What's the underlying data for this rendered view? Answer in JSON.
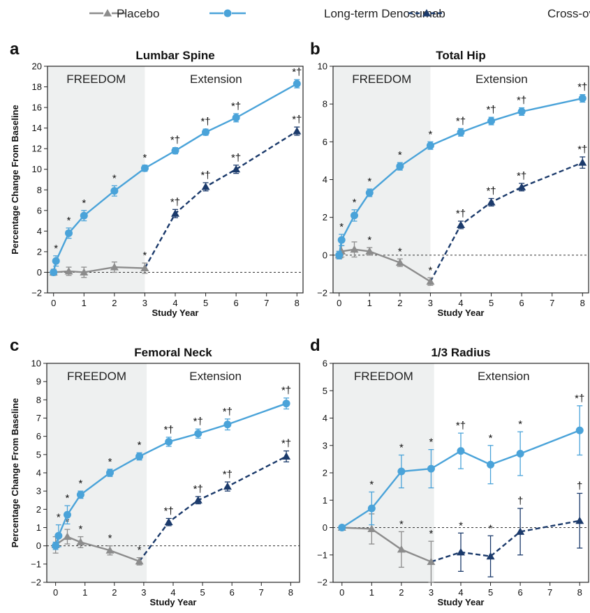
{
  "legend": [
    {
      "label": "Placebo",
      "marker": "triangle",
      "color": "#8c8c8c",
      "dash": "solid"
    },
    {
      "label": "Long-term Denosumab",
      "marker": "circle",
      "color": "#4aa3d9",
      "dash": "solid"
    },
    {
      "label": "Cross-over Denosumab",
      "marker": "triangle",
      "color": "#1b3a6b",
      "dash": "dashed"
    }
  ],
  "regions": {
    "freedom": "FREEDOM",
    "extension": "Extension"
  },
  "colors": {
    "placebo": "#8c8c8c",
    "long_term": "#4aa3d9",
    "cross_over": "#1b3a6b",
    "shade": "#eef0f0"
  },
  "chart_data": [
    {
      "type": "line",
      "letter": "a",
      "title": "Lumbar Spine",
      "xlabel": "Study Year",
      "ylabel": "Percentage Change From Baseline",
      "xlim": [
        -0.2,
        8.2
      ],
      "ylim": [
        -2,
        20
      ],
      "xticks": [
        0,
        1,
        2,
        3,
        4,
        5,
        6,
        7,
        8
      ],
      "yticks": [
        -2,
        0,
        2,
        4,
        6,
        8,
        10,
        12,
        14,
        16,
        18,
        20
      ],
      "shade_until": 3,
      "series": [
        {
          "name": "Placebo",
          "key": "placebo",
          "x": [
            0,
            0.5,
            1,
            2,
            3
          ],
          "y": [
            0,
            0.1,
            0,
            0.5,
            0.4
          ],
          "err": [
            0.3,
            0.4,
            0.5,
            0.5,
            0.5
          ],
          "annot": [
            "",
            "",
            "",
            "",
            "*"
          ]
        },
        {
          "name": "Long-term Denosumab",
          "key": "long_term",
          "x": [
            0,
            0.08,
            0.5,
            1,
            2,
            3,
            4,
            5,
            6,
            8
          ],
          "y": [
            0,
            1.1,
            3.8,
            5.5,
            7.9,
            10.1,
            11.8,
            13.6,
            15.0,
            18.3
          ],
          "err": [
            0.2,
            0.5,
            0.5,
            0.5,
            0.5,
            0.3,
            0.3,
            0.3,
            0.4,
            0.4
          ],
          "annot": [
            "",
            "*",
            "*",
            "*",
            "*",
            "*",
            "*†",
            "*†",
            "*†",
            "*†"
          ]
        },
        {
          "name": "Cross-over Denosumab",
          "key": "cross_over",
          "x": [
            3,
            4,
            5,
            6,
            8
          ],
          "y": [
            0.4,
            5.7,
            8.3,
            10.0,
            13.7
          ],
          "err": [
            0,
            0.4,
            0.4,
            0.4,
            0.4
          ],
          "annot": [
            "",
            "*†",
            "*†",
            "*†",
            "*†"
          ]
        }
      ]
    },
    {
      "type": "line",
      "letter": "b",
      "title": "Total Hip",
      "xlabel": "Study Year",
      "ylabel": "",
      "xlim": [
        -0.2,
        8.2
      ],
      "ylim": [
        -2,
        10
      ],
      "xticks": [
        0,
        1,
        2,
        3,
        4,
        5,
        6,
        7,
        8
      ],
      "yticks": [
        -2,
        0,
        2,
        4,
        6,
        8,
        10
      ],
      "shade_until": 3,
      "series": [
        {
          "name": "Placebo",
          "key": "placebo",
          "x": [
            0,
            0.08,
            0.5,
            1,
            2,
            3
          ],
          "y": [
            0,
            0.2,
            0.3,
            0.2,
            -0.4,
            -1.4
          ],
          "err": [
            0.2,
            0.3,
            0.4,
            0.2,
            0.2,
            0.2
          ],
          "annot": [
            "",
            "",
            "",
            "*",
            "*",
            "*"
          ]
        },
        {
          "name": "Long-term Denosumab",
          "key": "long_term",
          "x": [
            0,
            0.08,
            0.5,
            1,
            2,
            3,
            4,
            5,
            6,
            8
          ],
          "y": [
            0,
            0.8,
            2.1,
            3.3,
            4.7,
            5.8,
            6.5,
            7.1,
            7.6,
            8.3
          ],
          "err": [
            0.2,
            0.3,
            0.3,
            0.2,
            0.2,
            0.2,
            0.2,
            0.2,
            0.2,
            0.2
          ],
          "annot": [
            "",
            "*",
            "*",
            "*",
            "*",
            "*",
            "*†",
            "*†",
            "*†",
            "*†"
          ]
        },
        {
          "name": "Cross-over Denosumab",
          "key": "cross_over",
          "x": [
            3,
            4,
            5,
            6,
            8
          ],
          "y": [
            -1.4,
            1.6,
            2.8,
            3.6,
            4.9
          ],
          "err": [
            0,
            0.2,
            0.2,
            0.2,
            0.3
          ],
          "annot": [
            "",
            "*†",
            "*†",
            "*†",
            "*†"
          ]
        }
      ]
    },
    {
      "type": "line",
      "letter": "c",
      "title": "Femoral Neck",
      "xlabel": "Study Year",
      "ylabel": "Percentage Change From Baseline",
      "xlim": [
        -0.3,
        8.3
      ],
      "ylim": [
        -2,
        10
      ],
      "xticks": [
        0,
        1,
        2,
        3,
        4,
        5,
        6,
        7,
        8
      ],
      "yticks": [
        -2,
        -1,
        0,
        1,
        2,
        3,
        4,
        5,
        6,
        7,
        8,
        9,
        10
      ],
      "shade_until": 3.1,
      "series": [
        {
          "name": "Placebo",
          "key": "placebo",
          "x": [
            0,
            0.4,
            0.85,
            1.85,
            2.85
          ],
          "y": [
            0.05,
            0.5,
            0.2,
            -0.25,
            -0.85
          ],
          "err": [
            0.45,
            0.4,
            0.3,
            0.25,
            0.2
          ],
          "annot": [
            "",
            "*",
            "*",
            "*",
            "*"
          ]
        },
        {
          "name": "Long-term Denosumab",
          "key": "long_term",
          "x": [
            0,
            0.1,
            0.4,
            0.85,
            1.85,
            2.85,
            3.85,
            4.85,
            5.85,
            7.85
          ],
          "y": [
            0,
            0.55,
            1.7,
            2.8,
            4.0,
            4.9,
            5.7,
            6.15,
            6.65,
            7.8
          ],
          "err": [
            0.2,
            0.6,
            0.5,
            0.2,
            0.2,
            0.2,
            0.25,
            0.25,
            0.3,
            0.3
          ],
          "annot": [
            "",
            "*",
            "*",
            "*",
            "*",
            "*",
            "*†",
            "*†",
            "*†",
            "*†"
          ]
        },
        {
          "name": "Cross-over Denosumab",
          "key": "cross_over",
          "x": [
            2.85,
            3.85,
            4.85,
            5.85,
            7.85
          ],
          "y": [
            -0.85,
            1.3,
            2.5,
            3.25,
            4.9
          ],
          "err": [
            0,
            0.2,
            0.2,
            0.25,
            0.3
          ],
          "annot": [
            "",
            "*†",
            "*†",
            "*†",
            "*†"
          ]
        }
      ]
    },
    {
      "type": "line",
      "letter": "d",
      "title": "1/3 Radius",
      "xlabel": "Study Year",
      "ylabel": "",
      "xlim": [
        -0.3,
        8.3
      ],
      "ylim": [
        -2,
        6
      ],
      "xticks": [
        0,
        1,
        2,
        3,
        4,
        5,
        6,
        7,
        8
      ],
      "yticks": [
        -2,
        -1,
        0,
        1,
        2,
        3,
        4,
        5,
        6
      ],
      "shade_until": 3.1,
      "series": [
        {
          "name": "Placebo",
          "key": "placebo",
          "x": [
            0,
            1,
            2,
            3
          ],
          "y": [
            0,
            -0.05,
            -0.8,
            -1.25
          ],
          "err": [
            0,
            0.55,
            0.65,
            0.75
          ],
          "annot": [
            "",
            "",
            "*",
            "*"
          ]
        },
        {
          "name": "Long-term Denosumab",
          "key": "long_term",
          "x": [
            0,
            1,
            2,
            3,
            4,
            5,
            6,
            8
          ],
          "y": [
            0,
            0.7,
            2.05,
            2.15,
            2.8,
            2.3,
            2.7,
            3.55
          ],
          "err": [
            0,
            0.6,
            0.6,
            0.7,
            0.65,
            0.7,
            0.8,
            0.9
          ],
          "annot": [
            "",
            "*",
            "*",
            "*",
            "*†",
            "*",
            "*",
            "*†"
          ]
        },
        {
          "name": "Cross-over Denosumab",
          "key": "cross_over",
          "x": [
            3,
            4,
            5,
            6,
            8
          ],
          "y": [
            -1.25,
            -0.9,
            -1.05,
            -0.15,
            0.25
          ],
          "err": [
            0,
            0.7,
            0.75,
            0.85,
            1.0
          ],
          "annot": [
            "",
            "*",
            "*",
            "†",
            "†"
          ]
        }
      ]
    }
  ]
}
